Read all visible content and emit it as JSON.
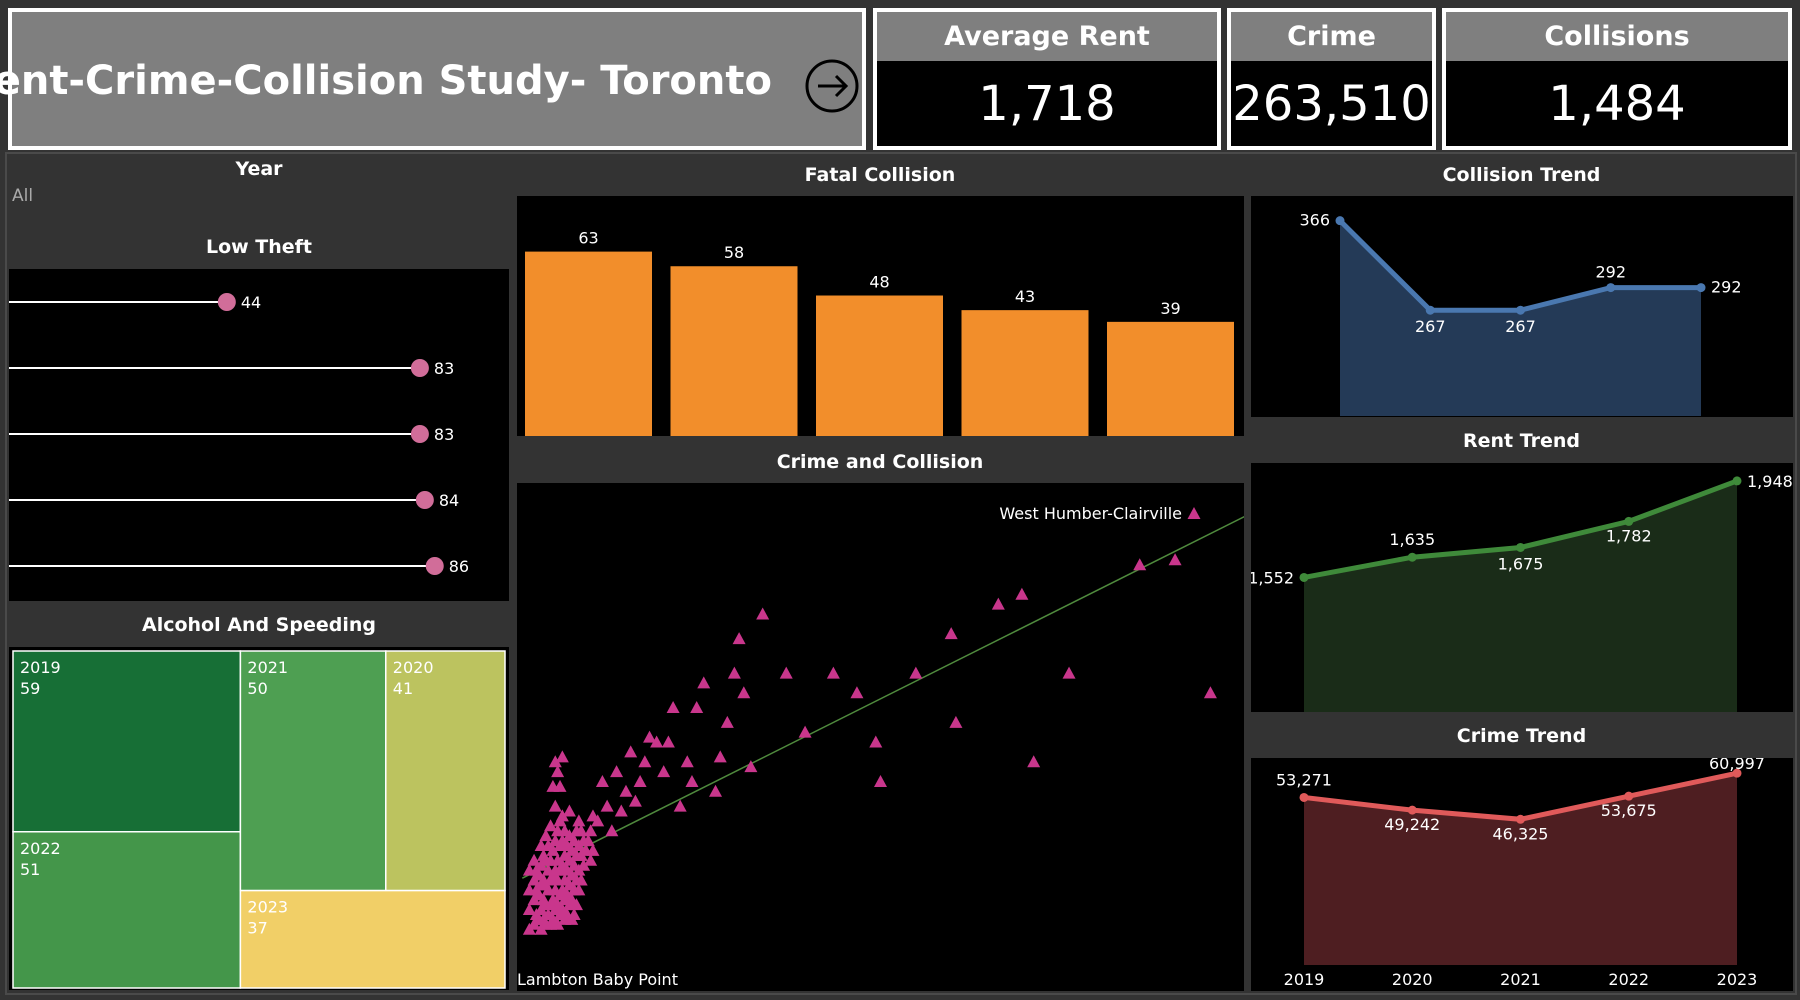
{
  "header": {
    "title": "Rent-Crime-Collision Study- Toronto"
  },
  "kpis": [
    {
      "label": "Average Rent",
      "value": "1,718"
    },
    {
      "label": "Crime",
      "value": "263,510"
    },
    {
      "label": "Collisions",
      "value": "1,484"
    }
  ],
  "filters": {
    "year_label": "Year",
    "year_value": "All"
  },
  "panels": {
    "low_theft": "Low Theft",
    "alcohol": "Alcohol And Speeding",
    "fatal": "Fatal Collision",
    "crime_collision": "Crime and Collision",
    "collision_trend": "Collision Trend",
    "rent_trend": "Rent Trend",
    "crime_trend": "Crime Trend"
  },
  "colors": {
    "fatal_bar": "#f28e2b",
    "lollipop": "#d16d99",
    "scatter": "#c9368c",
    "trendline": "#4f8a3d",
    "collision_line": "#4a78b0",
    "collision_fill": "#243a57",
    "rent_line": "#3f8a3a",
    "rent_fill": "#1a2c18",
    "crime_line": "#e05a5a",
    "crime_fill": "#4e1e21",
    "tree_2019": "#176f36",
    "tree_2021": "#4e9f52",
    "tree_2022": "#44964a",
    "tree_2020": "#bcc35f",
    "tree_2023": "#f1cf67"
  },
  "chart_data": [
    {
      "id": "low_theft",
      "type": "bar",
      "style": "lollipop",
      "categories": [
        "",
        "",
        "",
        "",
        ""
      ],
      "values": [
        44,
        83,
        83,
        84,
        86
      ],
      "labels": [
        "44",
        "83",
        "83",
        "84",
        "86"
      ]
    },
    {
      "id": "fatal_collision",
      "type": "bar",
      "categories": [
        "",
        "",
        "",
        "",
        ""
      ],
      "values": [
        63,
        58,
        48,
        43,
        39
      ],
      "labels": [
        "63",
        "58",
        "48",
        "43",
        "39"
      ]
    },
    {
      "id": "alcohol_speeding",
      "type": "treemap",
      "items": [
        {
          "year": "2019",
          "value": 59
        },
        {
          "year": "2022",
          "value": 51
        },
        {
          "year": "2021",
          "value": 50
        },
        {
          "year": "2020",
          "value": 41
        },
        {
          "year": "2023",
          "value": 37
        }
      ]
    },
    {
      "id": "crime_collision",
      "type": "scatter",
      "marker": "triangle",
      "trendline": true,
      "annotations": [
        "West Humber-Clairville",
        "Lambton Baby Point"
      ],
      "points": [
        [
          1,
          10
        ],
        [
          1,
          14
        ],
        [
          1,
          18
        ],
        [
          1,
          22
        ],
        [
          3,
          11
        ],
        [
          3,
          16
        ],
        [
          3,
          20
        ],
        [
          3,
          24
        ],
        [
          4,
          13
        ],
        [
          4,
          18
        ],
        [
          4,
          22
        ],
        [
          5,
          12
        ],
        [
          5,
          17
        ],
        [
          5,
          21
        ],
        [
          6,
          10
        ],
        [
          6,
          14
        ],
        [
          6,
          19
        ],
        [
          6,
          23
        ],
        [
          6,
          27
        ],
        [
          7,
          12
        ],
        [
          7,
          16
        ],
        [
          7,
          20
        ],
        [
          7,
          25
        ],
        [
          8,
          11
        ],
        [
          8,
          15
        ],
        [
          8,
          19
        ],
        [
          8,
          24
        ],
        [
          8,
          29
        ],
        [
          9,
          13
        ],
        [
          9,
          18
        ],
        [
          9,
          22
        ],
        [
          9,
          27
        ],
        [
          10,
          11
        ],
        [
          10,
          15
        ],
        [
          10,
          20
        ],
        [
          10,
          24
        ],
        [
          10,
          31
        ],
        [
          11,
          12
        ],
        [
          11,
          16
        ],
        [
          11,
          21
        ],
        [
          11,
          26
        ],
        [
          11,
          39
        ],
        [
          12,
          14
        ],
        [
          12,
          18
        ],
        [
          12,
          22
        ],
        [
          12,
          28
        ],
        [
          12,
          35
        ],
        [
          12,
          44
        ],
        [
          13,
          11
        ],
        [
          13,
          15
        ],
        [
          13,
          20
        ],
        [
          13,
          24
        ],
        [
          13,
          30
        ],
        [
          13,
          42
        ],
        [
          14,
          13
        ],
        [
          14,
          17
        ],
        [
          14,
          22
        ],
        [
          14,
          27
        ],
        [
          14,
          32
        ],
        [
          14,
          39
        ],
        [
          15,
          14
        ],
        [
          15,
          18
        ],
        [
          15,
          23
        ],
        [
          15,
          28
        ],
        [
          15,
          33
        ],
        [
          15,
          45
        ],
        [
          16,
          12
        ],
        [
          16,
          16
        ],
        [
          16,
          20
        ],
        [
          16,
          25
        ],
        [
          16,
          30
        ],
        [
          17,
          13
        ],
        [
          17,
          17
        ],
        [
          17,
          22
        ],
        [
          17,
          27
        ],
        [
          18,
          15
        ],
        [
          18,
          19
        ],
        [
          18,
          24
        ],
        [
          18,
          29
        ],
        [
          18,
          34
        ],
        [
          19,
          12
        ],
        [
          19,
          16
        ],
        [
          19,
          21
        ],
        [
          19,
          26
        ],
        [
          20,
          13
        ],
        [
          20,
          18
        ],
        [
          20,
          23
        ],
        [
          20,
          28
        ],
        [
          21,
          15
        ],
        [
          21,
          20
        ],
        [
          21,
          25
        ],
        [
          21,
          30
        ],
        [
          22,
          18
        ],
        [
          22,
          22
        ],
        [
          22,
          27
        ],
        [
          22,
          32
        ],
        [
          23,
          20
        ],
        [
          23,
          25
        ],
        [
          23,
          30
        ],
        [
          24,
          23
        ],
        [
          24,
          28
        ],
        [
          25,
          26
        ],
        [
          26,
          28
        ],
        [
          27,
          24
        ],
        [
          27,
          30
        ],
        [
          28,
          26
        ],
        [
          28,
          33
        ],
        [
          30,
          32
        ],
        [
          32,
          40
        ],
        [
          34,
          35
        ],
        [
          36,
          30
        ],
        [
          38,
          42
        ],
        [
          40,
          34
        ],
        [
          42,
          38
        ],
        [
          44,
          46
        ],
        [
          46,
          36
        ],
        [
          48,
          40
        ],
        [
          50,
          44
        ],
        [
          52,
          49
        ],
        [
          55,
          48
        ],
        [
          58,
          42
        ],
        [
          60,
          48
        ],
        [
          62,
          55
        ],
        [
          65,
          35
        ],
        [
          68,
          44
        ],
        [
          70,
          40
        ],
        [
          72,
          55
        ],
        [
          75,
          60
        ],
        [
          80,
          38
        ],
        [
          82,
          45
        ],
        [
          85,
          52
        ],
        [
          88,
          62
        ],
        [
          90,
          69
        ],
        [
          92,
          58
        ],
        [
          95,
          43
        ],
        [
          100,
          74
        ],
        [
          110,
          62
        ],
        [
          118,
          50
        ],
        [
          130,
          62
        ],
        [
          140,
          58
        ],
        [
          148,
          48
        ],
        [
          150,
          40
        ],
        [
          165,
          62
        ],
        [
          180,
          70
        ],
        [
          182,
          52
        ],
        [
          200,
          76
        ],
        [
          210,
          78
        ],
        [
          215,
          44
        ],
        [
          230,
          62
        ],
        [
          260,
          84
        ],
        [
          275,
          85
        ],
        [
          290,
          58
        ]
      ]
    },
    {
      "id": "collision_trend",
      "type": "area",
      "x": [
        "2019",
        "2020",
        "2021",
        "2022",
        "2023"
      ],
      "values": [
        366,
        267,
        267,
        292,
        292
      ],
      "labels": [
        "366",
        "267",
        "267",
        "292",
        "292"
      ]
    },
    {
      "id": "rent_trend",
      "type": "area",
      "x": [
        "2019",
        "2020",
        "2021",
        "2022",
        "2023"
      ],
      "values": [
        1552,
        1635,
        1675,
        1782,
        1948
      ],
      "labels": [
        "1,552",
        "1,635",
        "1,675",
        "1,782",
        "1,948"
      ]
    },
    {
      "id": "crime_trend",
      "type": "area",
      "x": [
        "2019",
        "2020",
        "2021",
        "2022",
        "2023"
      ],
      "values": [
        53271,
        49242,
        46325,
        53675,
        60997
      ],
      "labels": [
        "53,271",
        "49,242",
        "46,325",
        "53,675",
        "60,997"
      ]
    }
  ]
}
